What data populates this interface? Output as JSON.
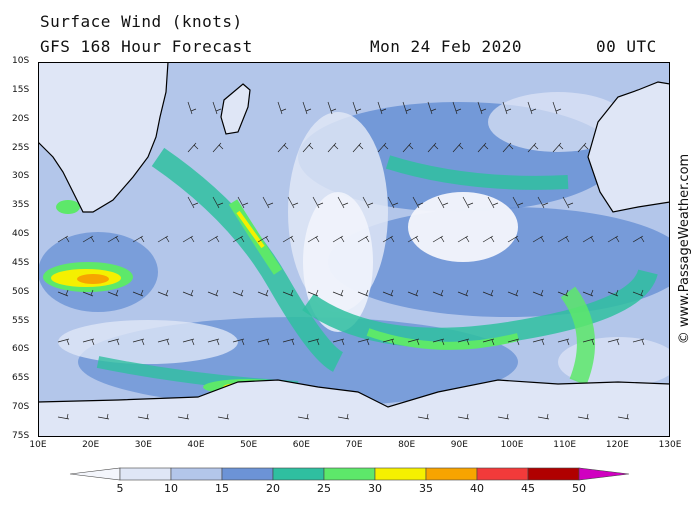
{
  "header": {
    "title": "Surface Wind (knots)",
    "model": "GFS 168 Hour Forecast",
    "date": "Mon 24 Feb 2020",
    "time": "00 UTC"
  },
  "map": {
    "lat_labels": [
      "10S",
      "15S",
      "20S",
      "25S",
      "30S",
      "35S",
      "40S",
      "45S",
      "50S",
      "55S",
      "60S",
      "65S",
      "70S",
      "75S"
    ],
    "lon_labels": [
      "10E",
      "20E",
      "30E",
      "40E",
      "50E",
      "60E",
      "70E",
      "80E",
      "90E",
      "100E",
      "110E",
      "120E",
      "130E"
    ]
  },
  "credit": "© www.PassageWeather.com",
  "legend": {
    "values": [
      "5",
      "10",
      "15",
      "20",
      "25",
      "30",
      "35",
      "40",
      "45",
      "50"
    ],
    "colors": [
      "#f4f6fc",
      "#dfe6f6",
      "#b3c6ea",
      "#6c93d6",
      "#2fbfa0",
      "#5de86a",
      "#f5f000",
      "#f7a400",
      "#f23a3a",
      "#b00000",
      "#d000c0"
    ]
  }
}
